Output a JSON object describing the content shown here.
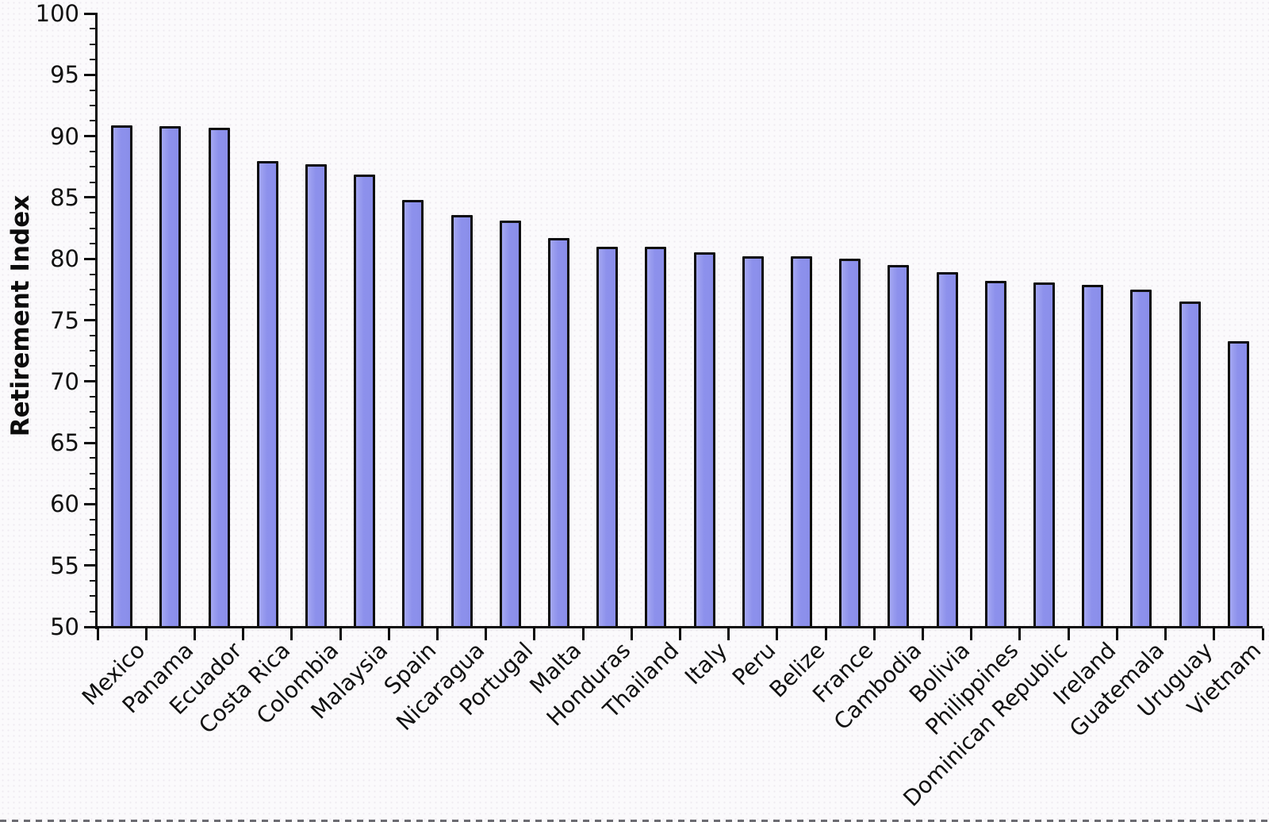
{
  "figure": {
    "background": "#fbfafc",
    "border_bottom_style": "dark dashed strip"
  },
  "chart_data": {
    "type": "bar",
    "title": "",
    "subtitle": "",
    "xlabel": "",
    "ylabel": "Retirement Index",
    "ylim": [
      50,
      100
    ],
    "ytick_step": 5,
    "yticks": [
      50,
      55,
      60,
      65,
      70,
      75,
      80,
      85,
      90,
      95,
      100
    ],
    "minor_tick_subdivisions": 4,
    "grid": "off",
    "legend": "none",
    "bar_fill_color": "#8E92EC",
    "bar_border_color": "#0E0E0E",
    "categories": [
      "Mexico",
      "Panama",
      "Ecuador",
      "Costa Rica",
      "Colombia",
      "Malaysia",
      "Spain",
      "Nicaragua",
      "Portugal",
      "Malta",
      "Honduras",
      "Thailand",
      "Italy",
      "Peru",
      "Belize",
      "France",
      "Cambodia",
      "Bolivia",
      "Philippines",
      "Dominican Republic",
      "Ireland",
      "Guatemala",
      "Uruguay",
      "Vietnam"
    ],
    "values": [
      90.9,
      90.8,
      90.7,
      88.0,
      87.7,
      86.9,
      84.8,
      83.6,
      83.1,
      81.7,
      81.0,
      81.0,
      80.5,
      80.2,
      80.2,
      80.0,
      79.5,
      78.9,
      78.2,
      78.1,
      77.9,
      77.5,
      76.5,
      73.3
    ]
  }
}
